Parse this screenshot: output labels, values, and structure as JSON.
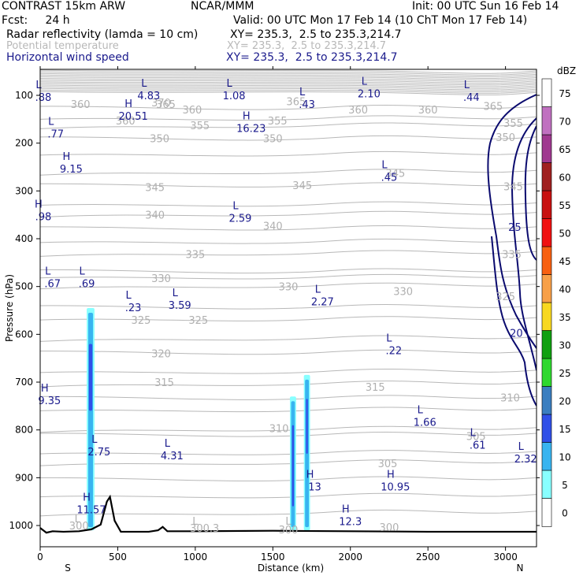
{
  "header": {
    "line1_left": "CONTRAST 15km ARW",
    "line1_mid": "NCAR/MMM",
    "line1_right": "Init: 00 UTC Sun 16 Feb 14",
    "line2_left": "Fcst:     24 h",
    "line2_right": "Valid: 00 UTC Mon 17 Feb 14 (10 ChT Mon 17 Feb 14)",
    "field1_name": "Radar reflectivity (lamda = 10 cm)",
    "field1_xy": "XY= 235.3,  2.5 to 235.3,214.7",
    "field2_name": "Potential temperature",
    "field2_xy": "XY= 235.3,  2.5 to 235.3,214.7",
    "field3_name": "Horizontal wind speed",
    "field3_xy": "XY= 235.3,  2.5 to 235.3,214.7",
    "colors": {
      "field1": "#000000",
      "field2": "#b8b8b8",
      "field3": "#1a1a8c"
    }
  },
  "chart_data": {
    "type": "cross-section",
    "title": "Radar reflectivity / Potential temperature / Horizontal wind speed cross-section",
    "xlabel": "Distance (km)",
    "ylabel": "Pressure (hPa)",
    "xlim": [
      0,
      3200
    ],
    "ylim": [
      1050,
      75
    ],
    "xticks": [
      0,
      500,
      1000,
      1500,
      2000,
      2500,
      3000
    ],
    "yticks": [
      100,
      200,
      300,
      400,
      500,
      600,
      700,
      800,
      900,
      1000
    ],
    "x_end_labels": {
      "left": "S",
      "right": "N"
    },
    "colorbar": {
      "unit": "dBZ",
      "labels": [
        "0",
        "5",
        "10",
        "15",
        "20",
        "25",
        "30",
        "35",
        "40",
        "45",
        "50",
        "55",
        "60",
        "65",
        "70",
        "75"
      ],
      "colors": [
        "#ffffff",
        "#88ffff",
        "#38b4f0",
        "#3050e8",
        "#3a7ec0",
        "#2fd82f",
        "#10a010",
        "#f8d820",
        "#f8a048",
        "#f86010",
        "#f01010",
        "#c81010",
        "#a02020",
        "#a03890",
        "#c070c0",
        "#ffffff"
      ]
    },
    "theta_labels": [
      {
        "v": "370",
        "x": 780,
        "p": 115
      },
      {
        "v": "365",
        "x": 810,
        "p": 118
      },
      {
        "v": "360",
        "x": 260,
        "p": 118
      },
      {
        "v": "360",
        "x": 980,
        "p": 130
      },
      {
        "v": "365",
        "x": 1650,
        "p": 112
      },
      {
        "v": "360",
        "x": 2050,
        "p": 130
      },
      {
        "v": "360",
        "x": 2500,
        "p": 130
      },
      {
        "v": "365",
        "x": 2920,
        "p": 122
      },
      {
        "v": "360",
        "x": 550,
        "p": 153
      },
      {
        "v": "355",
        "x": 1030,
        "p": 163
      },
      {
        "v": "355",
        "x": 1530,
        "p": 153
      },
      {
        "v": "355",
        "x": 3050,
        "p": 158
      },
      {
        "v": "350",
        "x": 770,
        "p": 190
      },
      {
        "v": "350",
        "x": 1500,
        "p": 190
      },
      {
        "v": "350",
        "x": 3000,
        "p": 187
      },
      {
        "v": "345",
        "x": 2290,
        "p": 262
      },
      {
        "v": "345",
        "x": 740,
        "p": 292
      },
      {
        "v": "345",
        "x": 1690,
        "p": 288
      },
      {
        "v": "345",
        "x": 3050,
        "p": 290
      },
      {
        "v": "340",
        "x": 740,
        "p": 350
      },
      {
        "v": "340",
        "x": 1500,
        "p": 373
      },
      {
        "v": "335",
        "x": 1000,
        "p": 432
      },
      {
        "v": "335",
        "x": 3040,
        "p": 432
      },
      {
        "v": "330",
        "x": 780,
        "p": 482
      },
      {
        "v": "330",
        "x": 1600,
        "p": 500
      },
      {
        "v": "330",
        "x": 2340,
        "p": 510
      },
      {
        "v": "325",
        "x": 650,
        "p": 570
      },
      {
        "v": "325",
        "x": 1020,
        "p": 570
      },
      {
        "v": "325",
        "x": 3000,
        "p": 520
      },
      {
        "v": "320",
        "x": 780,
        "p": 640
      },
      {
        "v": "315",
        "x": 800,
        "p": 700
      },
      {
        "v": "315",
        "x": 2160,
        "p": 710
      },
      {
        "v": "310",
        "x": 1540,
        "p": 796
      },
      {
        "v": "310",
        "x": 3030,
        "p": 732
      },
      {
        "v": "305",
        "x": 2240,
        "p": 870
      },
      {
        "v": "305",
        "x": 2810,
        "p": 813
      },
      {
        "v": "300",
        "x": 250,
        "p": 1000
      },
      {
        "v": "300.3",
        "x": 1060,
        "p": 1005
      },
      {
        "v": "300",
        "x": 1600,
        "p": 1008
      },
      {
        "v": "300",
        "x": 2250,
        "p": 1003
      },
      {
        "v": "L",
        "x": 240,
        "p": 985
      },
      {
        "v": "L",
        "x": 1000,
        "p": 990
      },
      {
        "v": "L",
        "x": 1600,
        "p": 990
      }
    ],
    "wind_extrema": [
      {
        "t": "L",
        "v": ".88",
        "x": 20,
        "p": 95
      },
      {
        "t": "L",
        "v": "4.83",
        "x": 700,
        "p": 92
      },
      {
        "t": "L",
        "v": "1.08",
        "x": 1250,
        "p": 92
      },
      {
        "t": "L",
        "v": ".43",
        "x": 1720,
        "p": 110
      },
      {
        "t": "L",
        "v": "2.10",
        "x": 2120,
        "p": 88
      },
      {
        "t": "L",
        "v": ".44",
        "x": 2780,
        "p": 95
      },
      {
        "t": "H",
        "v": "20.51",
        "x": 600,
        "p": 135
      },
      {
        "t": "H",
        "v": "16.23",
        "x": 1360,
        "p": 160
      },
      {
        "t": "L",
        "v": ".77",
        "x": 100,
        "p": 172
      },
      {
        "t": "H",
        "v": "9.15",
        "x": 200,
        "p": 245
      },
      {
        "t": "L",
        "v": ".45",
        "x": 2250,
        "p": 262
      },
      {
        "t": "H",
        "v": ".98",
        "x": 20,
        "p": 345
      },
      {
        "t": "L",
        "v": "2.59",
        "x": 1290,
        "p": 348
      },
      {
        "t": "L",
        "v": ".67",
        "x": 80,
        "p": 485
      },
      {
        "t": "L",
        "v": ".69",
        "x": 300,
        "p": 485
      },
      {
        "t": "L",
        "v": ".23",
        "x": 600,
        "p": 535
      },
      {
        "t": "L",
        "v": "3.59",
        "x": 900,
        "p": 530
      },
      {
        "t": "L",
        "v": "2.27",
        "x": 1820,
        "p": 523
      },
      {
        "t": "L",
        "v": ".22",
        "x": 2280,
        "p": 625
      },
      {
        "t": "H",
        "v": "9.35",
        "x": 60,
        "p": 730
      },
      {
        "t": "L",
        "v": "1.66",
        "x": 2480,
        "p": 775
      },
      {
        "t": "L",
        "v": ".61",
        "x": 2820,
        "p": 823
      },
      {
        "t": "L",
        "v": "2.75",
        "x": 380,
        "p": 837
      },
      {
        "t": "L",
        "v": "4.31",
        "x": 850,
        "p": 845
      },
      {
        "t": "L",
        "v": "2.32",
        "x": 3130,
        "p": 852
      },
      {
        "t": "H",
        "v": "13",
        "x": 1770,
        "p": 910
      },
      {
        "t": "H",
        "v": "10.95",
        "x": 2290,
        "p": 910
      },
      {
        "t": "H",
        "v": "11.57",
        "x": 330,
        "p": 958
      },
      {
        "t": "H",
        "v": "12.3",
        "x": 2000,
        "p": 983
      }
    ],
    "wind_contour_labels": [
      {
        "v": "25",
        "x": 3060,
        "p": 375
      },
      {
        "v": "20",
        "x": 3070,
        "p": 597
      }
    ],
    "terrain": [
      [
        0,
        1005
      ],
      [
        40,
        1015
      ],
      [
        80,
        1012
      ],
      [
        150,
        1013
      ],
      [
        250,
        1012
      ],
      [
        330,
        1008
      ],
      [
        390,
        998
      ],
      [
        430,
        950
      ],
      [
        450,
        940
      ],
      [
        480,
        990
      ],
      [
        520,
        1013
      ],
      [
        700,
        1013
      ],
      [
        760,
        1010
      ],
      [
        790,
        1003
      ],
      [
        820,
        1012
      ],
      [
        1000,
        1012
      ],
      [
        1500,
        1011
      ],
      [
        2000,
        1012
      ],
      [
        2500,
        1013
      ],
      [
        3000,
        1013
      ],
      [
        3200,
        1013
      ]
    ],
    "reflectivity_columns": [
      {
        "x": 325,
        "p_top": 545,
        "p_bot": 1010,
        "w": 50,
        "core_top": 620,
        "core_bot": 760,
        "core_w": 22
      },
      {
        "x": 1630,
        "p_top": 730,
        "p_bot": 1010,
        "w": 40,
        "core_top": 790,
        "core_bot": 960,
        "core_w": 12
      },
      {
        "x": 1720,
        "p_top": 685,
        "p_bot": 1010,
        "w": 40,
        "core_top": 735,
        "core_bot": 850,
        "core_w": 12
      }
    ]
  }
}
